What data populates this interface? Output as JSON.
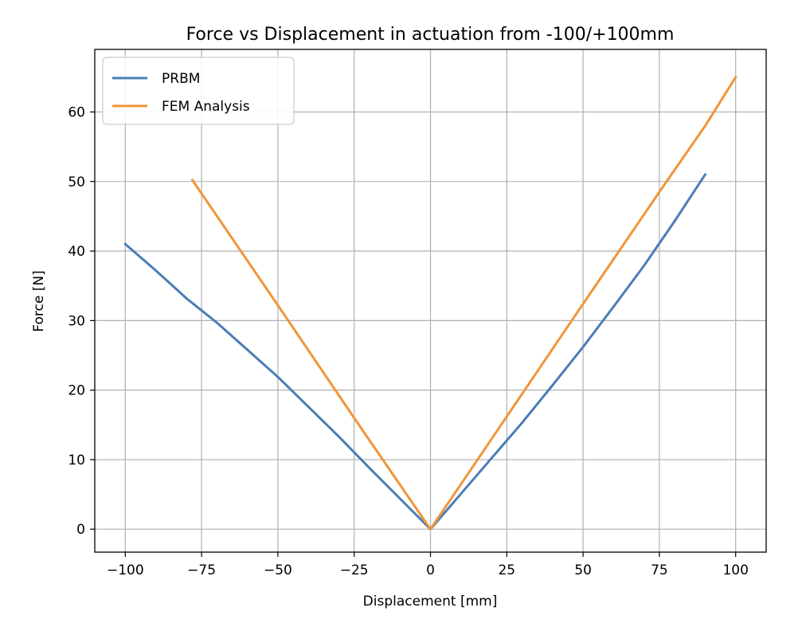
{
  "chart_data": {
    "type": "line",
    "title": "Force vs Displacement in actuation from -100/+100mm",
    "xlabel": "Displacement [mm]",
    "ylabel": "Force [N]",
    "xlim": [
      -110,
      110
    ],
    "ylim": [
      -3.3,
      69
    ],
    "xticks": [
      -100,
      -75,
      -50,
      -25,
      0,
      25,
      50,
      75,
      100
    ],
    "xtick_labels": [
      "−100",
      "−75",
      "−50",
      "−25",
      "0",
      "25",
      "50",
      "75",
      "100"
    ],
    "yticks": [
      0,
      10,
      20,
      30,
      40,
      50,
      60
    ],
    "ytick_labels": [
      "0",
      "10",
      "20",
      "30",
      "40",
      "50",
      "60"
    ],
    "grid": true,
    "legend_position": "top-left",
    "series": [
      {
        "name": "PRBM",
        "color": "#4a7eb5",
        "x": [
          -100,
          -90,
          -80,
          -70,
          -60,
          -50,
          -40,
          -30,
          -20,
          -10,
          0,
          10,
          20,
          30,
          40,
          50,
          60,
          70,
          80,
          90
        ],
        "y": [
          41,
          37.2,
          33.2,
          29.7,
          25.8,
          21.9,
          17.6,
          13.3,
          8.8,
          4.4,
          0,
          5.1,
          10.2,
          15.3,
          20.7,
          26.2,
          32,
          37.9,
          44.3,
          51
        ]
      },
      {
        "name": "FEM Analysis",
        "color": "#f0953a",
        "x": [
          -78,
          -50,
          -25,
          0,
          25,
          50,
          75,
          90,
          100
        ],
        "y": [
          50.2,
          32.2,
          16,
          0,
          16.2,
          32.4,
          48.5,
          58,
          65
        ]
      }
    ]
  }
}
